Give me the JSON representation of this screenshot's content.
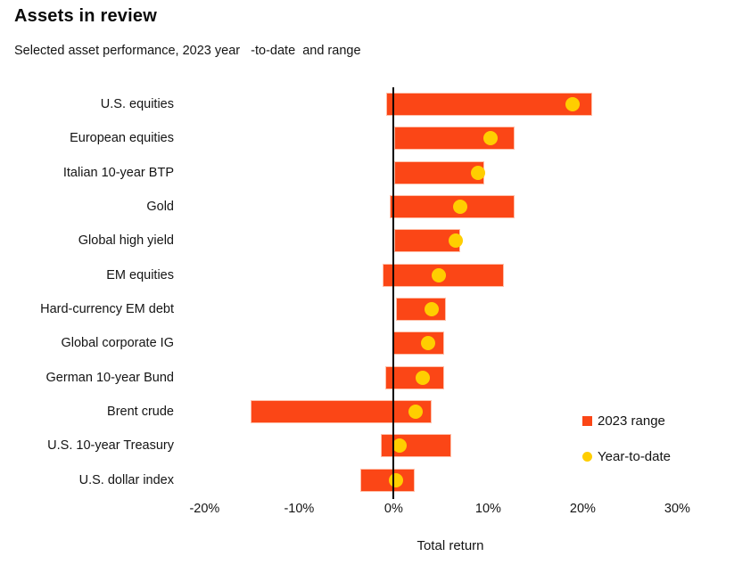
{
  "title": "Assets in review",
  "subtitle": "Selected asset performance, 2023 year   -to-date  and range",
  "colors": {
    "range_bar": "#FB4616",
    "ytd_dot": "#FFCE00",
    "zero_line": "#000000",
    "text": "#141414"
  },
  "legend": {
    "items": [
      {
        "label": "2023 range",
        "marker": "square-icon",
        "color": "#FB4616"
      },
      {
        "label": "Year-to-date",
        "marker": "circle-icon",
        "color": "#FFCE00"
      }
    ]
  },
  "chart_data": {
    "type": "bar",
    "orientation": "horizontal",
    "title": "Assets in review",
    "subtitle": "Selected asset performance, 2023 year-to-date and range",
    "xlabel": "Total return",
    "xlim": [
      -22.3,
      34.3
    ],
    "x_tick_values": [
      -20,
      -10,
      0,
      10,
      20,
      30
    ],
    "x_tick_labels": [
      "-20%",
      "-10%",
      "0%",
      "10%",
      "20%",
      "30%"
    ],
    "grid": false,
    "legend_position": "right-middle",
    "categories": [
      "U.S. equities",
      "European equities",
      "Italian 10-year BTP",
      "Gold",
      "Global high yield",
      "EM equities",
      "Hard-currency EM debt",
      "Global corporate IG",
      "German 10-year Bund",
      "Brent crude",
      "U.S. 10-year Treasury",
      "U.S. dollar index"
    ],
    "series": [
      {
        "name": "2023 range",
        "type": "range-bar",
        "color": "#FB4616",
        "low": [
          -0.8,
          0.1,
          0.1,
          -0.4,
          0.1,
          -1.2,
          0.2,
          0.0,
          -0.9,
          -15.1,
          -1.4,
          -3.5
        ],
        "high": [
          21.0,
          12.8,
          9.6,
          12.8,
          7.0,
          11.7,
          5.5,
          5.3,
          5.3,
          4.0,
          6.1,
          2.2
        ]
      },
      {
        "name": "Year-to-date",
        "type": "dot",
        "color": "#FFCE00",
        "values": [
          18.9,
          10.2,
          8.9,
          7.0,
          6.6,
          4.8,
          4.0,
          3.6,
          3.1,
          2.3,
          0.6,
          0.2
        ]
      }
    ]
  }
}
